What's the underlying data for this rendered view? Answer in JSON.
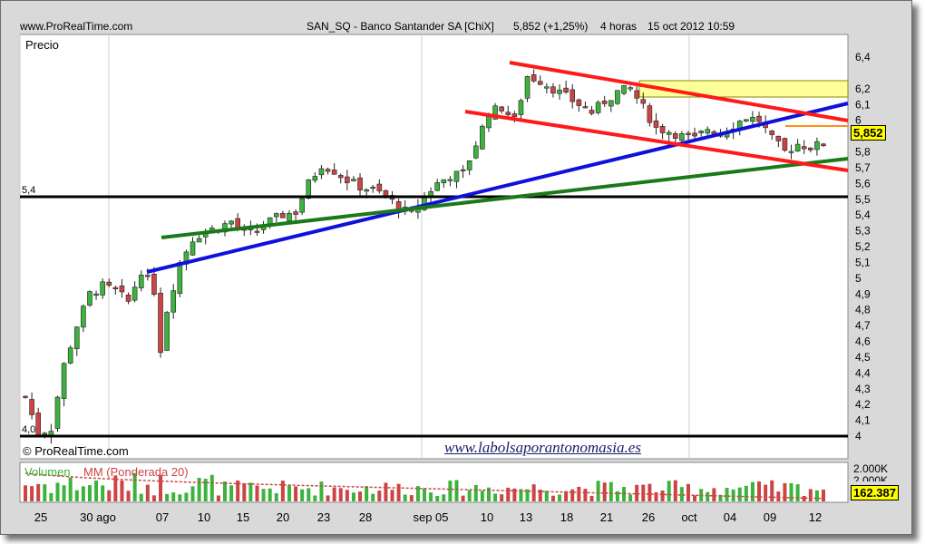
{
  "header": {
    "site": "www.ProRealTime.com",
    "title": "SAN_SQ - Banco Santander SA [ChiX]",
    "quote": "5,852 (+1,25%)",
    "timeframe": "4 horas",
    "datetime": "15 oct 2012 10:59"
  },
  "price_panel": {
    "label": "Precio",
    "copyright": "© ProRealTime.com",
    "watermark": "www.labolsaporantonomasia.es",
    "last_price_badge": "5,852",
    "level_label_top": "5,4",
    "level_label_bottom": "4,0"
  },
  "volume_panel": {
    "label_volume": "Volumen",
    "label_ma": "MM (Ponderada 20)",
    "scale_top": "2.000K",
    "scale_second": "2.000K",
    "last_volume_badge": "162.387"
  },
  "colors": {
    "up_candle": "#3cb33c",
    "down_candle": "#cc4444",
    "channel_lines": "#ff1a1a",
    "support_line": "#1a7a1a",
    "trend_line": "#1010dd",
    "horizontal_level": "#000000",
    "resistance_zone": "#ffff99",
    "last_badge": "#ffff00"
  },
  "chart_data": {
    "type": "candlestick",
    "y_axis": {
      "range": [
        4.0,
        6.4
      ],
      "ticks": [
        "6,4",
        "6,2",
        "6,1",
        "6",
        "5,9",
        "5,8",
        "5,7",
        "5,6",
        "5,5",
        "5,4",
        "5,3",
        "5,2",
        "5,1",
        "5",
        "4,9",
        "4,8",
        "4,7",
        "4,6",
        "4,5",
        "4,4",
        "4,3",
        "4,2",
        "4,1",
        "4"
      ],
      "tick_values": [
        6.4,
        6.2,
        6.1,
        6.0,
        5.9,
        5.8,
        5.7,
        5.6,
        5.5,
        5.4,
        5.3,
        5.2,
        5.1,
        5.0,
        4.9,
        4.8,
        4.7,
        4.6,
        4.5,
        4.4,
        4.3,
        4.2,
        4.1,
        4.0
      ]
    },
    "x_axis": {
      "labels": [
        "25",
        "30 ago",
        "07",
        "10",
        "15",
        "20",
        "23",
        "28",
        "sep 05",
        "10",
        "13",
        "18",
        "21",
        "26",
        "oct",
        "04",
        "09",
        "12"
      ]
    },
    "price_path": [
      [
        0,
        4.25
      ],
      [
        2,
        4.02
      ],
      [
        4,
        4.05
      ],
      [
        6,
        4.45
      ],
      [
        8,
        4.7
      ],
      [
        10,
        4.9
      ],
      [
        12,
        4.95
      ],
      [
        14,
        4.92
      ],
      [
        16,
        4.85
      ],
      [
        18,
        5.05
      ],
      [
        20,
        4.92
      ],
      [
        21,
        4.55
      ],
      [
        22,
        4.8
      ],
      [
        24,
        5.1
      ],
      [
        26,
        5.25
      ],
      [
        28,
        5.3
      ],
      [
        30,
        5.32
      ],
      [
        32,
        5.36
      ],
      [
        34,
        5.28
      ],
      [
        36,
        5.3
      ],
      [
        38,
        5.36
      ],
      [
        40,
        5.4
      ],
      [
        42,
        5.42
      ],
      [
        44,
        5.6
      ],
      [
        46,
        5.72
      ],
      [
        48,
        5.68
      ],
      [
        50,
        5.62
      ],
      [
        52,
        5.58
      ],
      [
        54,
        5.56
      ],
      [
        56,
        5.52
      ],
      [
        58,
        5.45
      ],
      [
        60,
        5.4
      ],
      [
        62,
        5.52
      ],
      [
        64,
        5.6
      ],
      [
        66,
        5.65
      ],
      [
        68,
        5.66
      ],
      [
        70,
        5.85
      ],
      [
        72,
        6.05
      ],
      [
        74,
        6.08
      ],
      [
        76,
        6.0
      ],
      [
        78,
        6.28
      ],
      [
        80,
        6.25
      ],
      [
        82,
        6.2
      ],
      [
        84,
        6.15
      ],
      [
        86,
        6.1
      ],
      [
        88,
        6.05
      ],
      [
        90,
        6.12
      ],
      [
        92,
        6.18
      ],
      [
        94,
        6.2
      ],
      [
        96,
        6.08
      ],
      [
        98,
        5.95
      ],
      [
        100,
        5.93
      ],
      [
        102,
        5.9
      ],
      [
        104,
        5.88
      ],
      [
        106,
        5.95
      ],
      [
        108,
        5.92
      ],
      [
        110,
        5.97
      ],
      [
        112,
        6.02
      ],
      [
        114,
        6.0
      ],
      [
        116,
        5.88
      ],
      [
        118,
        5.8
      ],
      [
        120,
        5.85
      ],
      [
        122,
        5.83
      ],
      [
        124,
        5.852
      ]
    ],
    "volume_ma_level": "declining from ~1.1M to ~0.5M"
  }
}
